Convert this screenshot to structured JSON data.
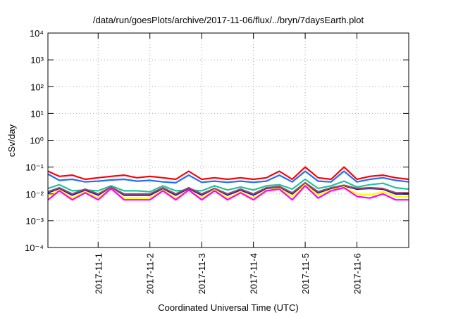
{
  "chart_data": {
    "type": "line",
    "title": "/data/run/goesPlots/archive/2017-11-06/flux/../bryn/7daysEarth.plot",
    "xlabel": "Coordinated Universal Time (UTC)",
    "ylabel": "cSv/day",
    "yscale": "log",
    "ylim": [
      0.0001,
      10000
    ],
    "xlim_days_from_2017_11_01": [
      -0.97,
      6.0
    ],
    "grid": true,
    "legend": "none",
    "y_ticks": [
      {
        "value": 10000,
        "label": "10⁴"
      },
      {
        "value": 1000,
        "label": "10³"
      },
      {
        "value": 100,
        "label": "10²"
      },
      {
        "value": 10,
        "label": "10¹"
      },
      {
        "value": 1,
        "label": "10⁰"
      },
      {
        "value": 0.1,
        "label": "10⁻¹"
      },
      {
        "value": 0.01,
        "label": "10⁻²"
      },
      {
        "value": 0.001,
        "label": "10⁻³"
      },
      {
        "value": 0.0001,
        "label": "10⁻⁴"
      }
    ],
    "x_ticks": [
      {
        "value": 0,
        "label": "2017-11-1"
      },
      {
        "value": 1,
        "label": "2017-11-2"
      },
      {
        "value": 2,
        "label": "2017-11-3"
      },
      {
        "value": 3,
        "label": "2017-11-4"
      },
      {
        "value": 4,
        "label": "2017-11-5"
      },
      {
        "value": 5,
        "label": "2017-11-6"
      }
    ],
    "x": [
      -0.97,
      -0.75,
      -0.5,
      -0.25,
      0,
      0.25,
      0.5,
      0.75,
      1,
      1.25,
      1.5,
      1.75,
      2,
      2.25,
      2.5,
      2.75,
      3,
      3.25,
      3.5,
      3.75,
      4,
      4.25,
      4.5,
      4.75,
      5,
      5.25,
      5.5,
      5.75,
      6
    ],
    "series": [
      {
        "name": "red",
        "color": "#ff0000",
        "values": [
          0.07,
          0.045,
          0.05,
          0.035,
          0.04,
          0.045,
          0.05,
          0.04,
          0.045,
          0.04,
          0.035,
          0.07,
          0.035,
          0.04,
          0.035,
          0.04,
          0.035,
          0.04,
          0.07,
          0.035,
          0.1,
          0.04,
          0.035,
          0.1,
          0.035,
          0.045,
          0.05,
          0.04,
          0.035
        ]
      },
      {
        "name": "blue",
        "color": "#1e6fff",
        "values": [
          0.055,
          0.032,
          0.035,
          0.028,
          0.03,
          0.033,
          0.035,
          0.03,
          0.032,
          0.028,
          0.026,
          0.05,
          0.027,
          0.03,
          0.027,
          0.03,
          0.027,
          0.03,
          0.05,
          0.028,
          0.07,
          0.03,
          0.028,
          0.07,
          0.028,
          0.035,
          0.04,
          0.032,
          0.028
        ]
      },
      {
        "name": "teal",
        "color": "#22c49a",
        "values": [
          0.016,
          0.022,
          0.013,
          0.014,
          0.013,
          0.02,
          0.013,
          0.013,
          0.012,
          0.02,
          0.013,
          0.014,
          0.013,
          0.02,
          0.014,
          0.018,
          0.014,
          0.02,
          0.022,
          0.015,
          0.035,
          0.016,
          0.02,
          0.03,
          0.018,
          0.022,
          0.025,
          0.017,
          0.015
        ]
      },
      {
        "name": "dark-blue",
        "color": "#1a1aa0",
        "values": [
          0.011,
          0.016,
          0.009,
          0.014,
          0.009,
          0.018,
          0.009,
          0.009,
          0.009,
          0.016,
          0.009,
          0.016,
          0.009,
          0.016,
          0.009,
          0.014,
          0.009,
          0.016,
          0.018,
          0.01,
          0.025,
          0.011,
          0.016,
          0.02,
          0.015,
          0.016,
          0.015,
          0.01,
          0.01
        ]
      },
      {
        "name": "brown",
        "color": "#9c4a6a",
        "values": [
          0.012,
          0.017,
          0.01,
          0.015,
          0.01,
          0.018,
          0.01,
          0.01,
          0.01,
          0.017,
          0.01,
          0.017,
          0.01,
          0.016,
          0.01,
          0.015,
          0.01,
          0.017,
          0.019,
          0.011,
          0.026,
          0.012,
          0.017,
          0.021,
          0.016,
          0.017,
          0.016,
          0.011,
          0.011
        ]
      },
      {
        "name": "yellow",
        "color": "#ffff00",
        "values": [
          0.008,
          0.014,
          0.007,
          0.012,
          0.007,
          0.016,
          0.007,
          0.007,
          0.007,
          0.014,
          0.007,
          0.014,
          0.007,
          0.014,
          0.007,
          0.012,
          0.007,
          0.014,
          0.016,
          0.008,
          0.022,
          0.009,
          0.014,
          0.018,
          0.01,
          0.009,
          0.012,
          0.008,
          0.008
        ]
      },
      {
        "name": "magenta",
        "color": "#ff00ff",
        "values": [
          0.006,
          0.013,
          0.006,
          0.011,
          0.006,
          0.016,
          0.006,
          0.006,
          0.006,
          0.013,
          0.006,
          0.014,
          0.006,
          0.013,
          0.006,
          0.011,
          0.006,
          0.013,
          0.015,
          0.006,
          0.02,
          0.007,
          0.013,
          0.017,
          0.008,
          0.007,
          0.01,
          0.006,
          0.006
        ]
      }
    ]
  }
}
